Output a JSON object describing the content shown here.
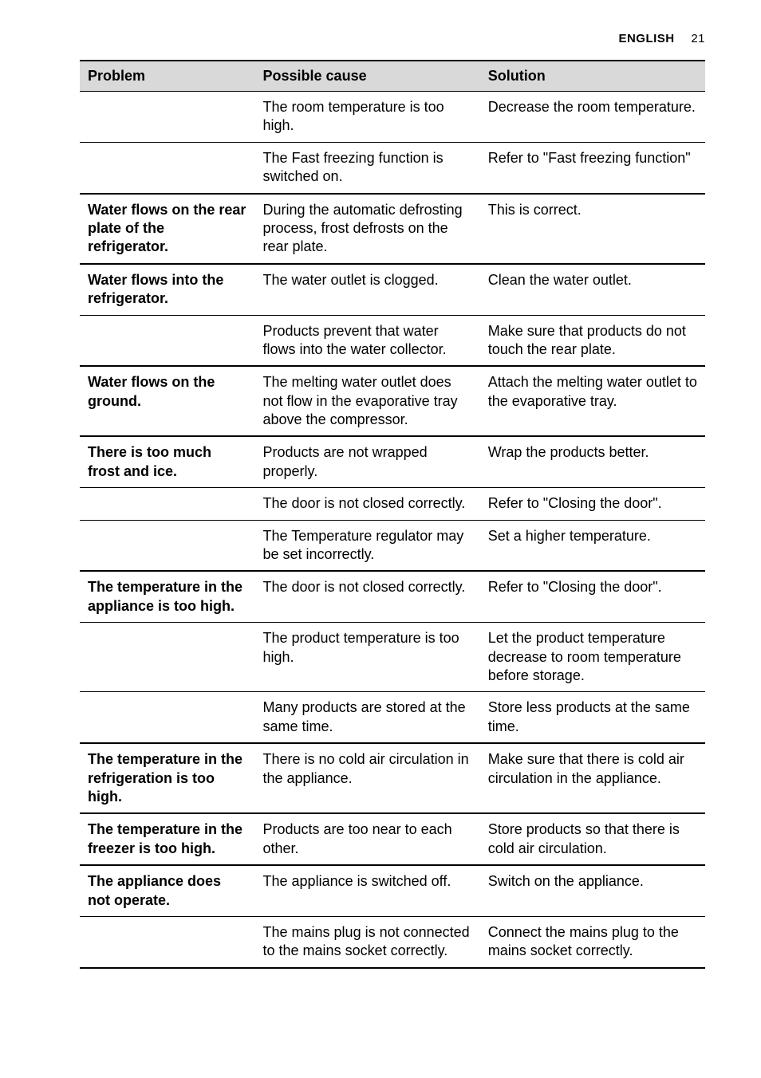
{
  "header": {
    "language": "ENGLISH",
    "page": "21"
  },
  "table": {
    "columns": {
      "problem": "Problem",
      "cause": "Possible cause",
      "solution": "Solution"
    },
    "rows": [
      {
        "group": false,
        "problem": "",
        "cause": "The room temperature is too high.",
        "solution": "Decrease the room temperature."
      },
      {
        "group": false,
        "problem": "",
        "cause": " The Fast freezing function is switched on.",
        "solution": " Refer to \"Fast freezing function\""
      },
      {
        "group": true,
        "problem": "Water flows on the rear plate of the refrigerator.",
        "cause": "During the automatic defrosting process, frost defrosts on the rear plate.",
        "solution": "This is correct."
      },
      {
        "group": true,
        "problem": "Water flows into the refrigerator.",
        "cause": "The water outlet is clogged.",
        "solution": "Clean the water outlet."
      },
      {
        "group": false,
        "problem": "",
        "cause": "Products prevent that water flows into the water collector.",
        "solution": "Make sure that products do not touch the rear plate."
      },
      {
        "group": true,
        "problem": "Water flows on the ground.",
        "cause": "The melting water outlet does not flow in the evaporative tray above the compressor.",
        "solution": "Attach the melting water outlet to the evaporative tray."
      },
      {
        "group": true,
        "problem": "There is too much frost and ice.",
        "cause": "Products are not wrapped properly.",
        "solution": "Wrap the products better."
      },
      {
        "group": false,
        "problem": "",
        "cause": "The door is not closed correctly.",
        "solution": "Refer to \"Closing the door\"."
      },
      {
        "group": false,
        "problem": "",
        "cause": "The Temperature regulator may be set incorrectly.",
        "solution": "Set a higher temperature."
      },
      {
        "group": true,
        "problem": "The temperature in the appliance is too high.",
        "cause": "The door is not closed correctly.",
        "solution": "Refer to \"Closing the door\"."
      },
      {
        "group": false,
        "problem": "",
        "cause": "The product temperature is too high.",
        "solution": "Let the product temperature decrease to room temperature before storage."
      },
      {
        "group": false,
        "problem": "",
        "cause": "Many products are stored at the same time.",
        "solution": "Store less products at the same time."
      },
      {
        "group": true,
        "problem": "The temperature in the refrigeration is too high.",
        "cause": "There is no cold air circulation in the appliance.",
        "solution": "Make sure that there is cold air circulation in the appliance."
      },
      {
        "group": true,
        "problem": "The temperature in the freezer is too high.",
        "cause": "Products are too near to each other.",
        "solution": "Store products so that there is cold air circulation."
      },
      {
        "group": true,
        "problem": "The appliance does not operate.",
        "cause": "The appliance is switched off.",
        "solution": "Switch on the appliance."
      },
      {
        "group": false,
        "problem": "",
        "cause": "The mains plug is not connected to the mains socket correctly.",
        "solution": "Connect the mains plug to the mains socket correctly."
      }
    ]
  }
}
